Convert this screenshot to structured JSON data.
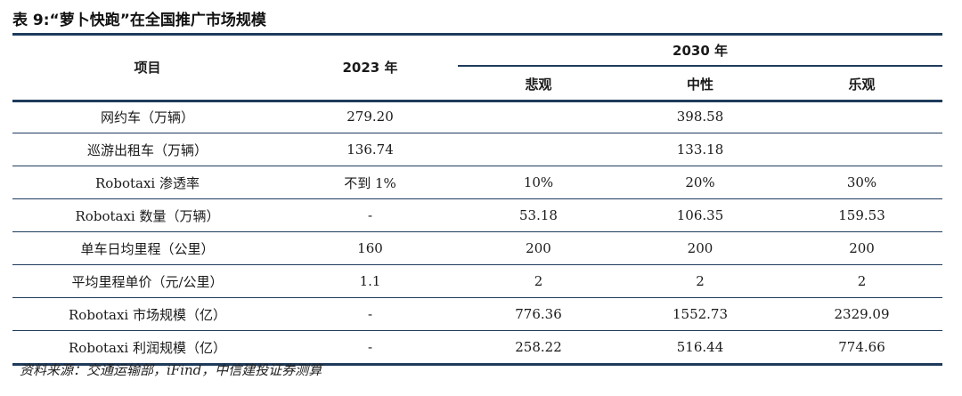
{
  "title": "表 9:“萝卜快跑”在全国推广市场规模",
  "header": {
    "item": "项目",
    "year2023": "2023 年",
    "year2030": "2030 年",
    "pessimistic": "悲观",
    "neutral": "中性",
    "optimistic": "乐观"
  },
  "rows": [
    {
      "label": "网约车（万辆）",
      "y2023": "279.20",
      "merged": "398.58"
    },
    {
      "label": "巡游出租车（万辆）",
      "y2023": "136.74",
      "merged": "133.18"
    },
    {
      "label": "Robotaxi 渗透率",
      "y2023": "不到 1%",
      "pess": "10%",
      "neut": "20%",
      "opt": "30%"
    },
    {
      "label": "Robotaxi 数量（万辆）",
      "y2023": "-",
      "pess": "53.18",
      "neut": "106.35",
      "opt": "159.53"
    },
    {
      "label": "单车日均里程（公里）",
      "y2023": "160",
      "pess": "200",
      "neut": "200",
      "opt": "200"
    },
    {
      "label": "平均里程单价（元/公里）",
      "y2023": "1.1",
      "pess": "2",
      "neut": "2",
      "opt": "2"
    },
    {
      "label": "Robotaxi 市场规模（亿）",
      "y2023": "-",
      "pess": "776.36",
      "neut": "1552.73",
      "opt": "2329.09"
    },
    {
      "label": "Robotaxi 利润规模（亿）",
      "y2023": "-",
      "pess": "258.22",
      "neut": "516.44",
      "opt": "774.66"
    }
  ],
  "source": "资料来源：交通运输部，iFind，中信建投证券测算",
  "colors": {
    "rule": "#1f3b5c"
  }
}
